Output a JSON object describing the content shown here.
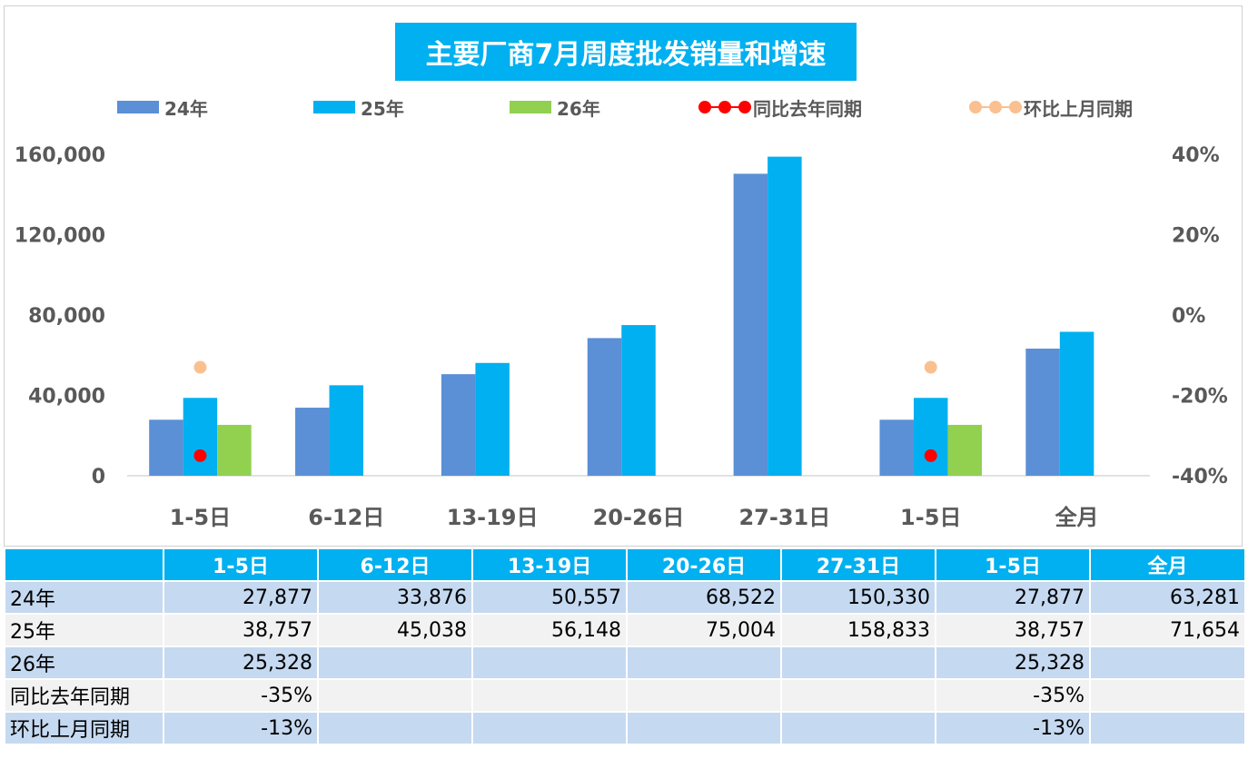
{
  "chart_data": {
    "type": "bar",
    "title": "主要厂商7月周度批发销量和增速",
    "categories": [
      "1-5日",
      "6-12日",
      "13-19日",
      "20-26日",
      "27-31日",
      "1-5日",
      "全月"
    ],
    "series": [
      {
        "name": "24年",
        "kind": "bar",
        "color": "#5b8fd6",
        "values": [
          27877,
          33876,
          50557,
          68522,
          150330,
          27877,
          63281
        ]
      },
      {
        "name": "25年",
        "kind": "bar",
        "color": "#00b0f0",
        "values": [
          38757,
          45038,
          56148,
          75004,
          158833,
          38757,
          71654
        ]
      },
      {
        "name": "26年",
        "kind": "bar",
        "color": "#92d050",
        "values": [
          25328,
          null,
          null,
          null,
          null,
          25328,
          null
        ]
      },
      {
        "name": "同比去年同期",
        "kind": "line",
        "axis": "right",
        "color": "#ff0000",
        "values": [
          -35,
          null,
          null,
          null,
          null,
          -35,
          null
        ]
      },
      {
        "name": "环比上月同期",
        "kind": "line",
        "axis": "right",
        "color": "#fac090",
        "values": [
          -13,
          null,
          null,
          null,
          null,
          -13,
          null
        ]
      }
    ],
    "ylim": [
      0,
      160000
    ],
    "y_ticks": [
      "0",
      "40,000",
      "80,000",
      "120,000",
      "160,000"
    ],
    "y2lim": [
      -40,
      40
    ],
    "y2_ticks": [
      "-40%",
      "-20%",
      "0%",
      "20%",
      "40%"
    ],
    "grid": false,
    "legend_position": "top"
  },
  "table": {
    "headers": [
      "",
      "1-5日",
      "6-12日",
      "13-19日",
      "20-26日",
      "27-31日",
      "1-5日",
      "全月"
    ],
    "rows": [
      {
        "label": "24年",
        "cells": [
          "27,877",
          "33,876",
          "50,557",
          "68,522",
          "150,330",
          "27,877",
          "63,281"
        ]
      },
      {
        "label": "25年",
        "cells": [
          "38,757",
          "45,038",
          "56,148",
          "75,004",
          "158,833",
          "38,757",
          "71,654"
        ]
      },
      {
        "label": "26年",
        "cells": [
          "25,328",
          "",
          "",
          "",
          "",
          "25,328",
          ""
        ]
      },
      {
        "label": "同比去年同期",
        "cells": [
          "-35%",
          "",
          "",
          "",
          "",
          "-35%",
          ""
        ]
      },
      {
        "label": "环比上月同期",
        "cells": [
          "-13%",
          "",
          "",
          "",
          "",
          "-13%",
          ""
        ]
      }
    ]
  }
}
